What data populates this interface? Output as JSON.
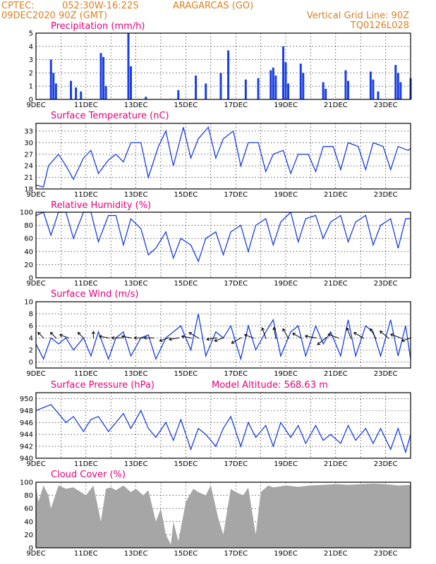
{
  "header": {
    "source": "CPTEC:",
    "location_coords": "052:30W-16:22S",
    "location_name": "ARAGARCAS (GO)",
    "run_date": "09DEC2020 90Z (GMT)",
    "grid_note": "Vertical Grid Line: 90Z",
    "code": "TQ0126L028"
  },
  "colors": {
    "header": "#e08020",
    "panel_title": "#e8007a",
    "series": "#1a3fe0",
    "cloud": "#a6a6a6"
  },
  "chart_data": [
    {
      "id": "precip",
      "type": "bar",
      "title": "Precipitation (mm/h)",
      "ylim": [
        0,
        5
      ],
      "yticks": [
        0,
        1,
        2,
        3,
        4,
        5
      ],
      "x_labels": [
        "9DEC",
        "11DEC",
        "13DEC",
        "15DEC",
        "17DEC",
        "19DEC",
        "21DEC",
        "23DEC"
      ],
      "x_range_days": [
        9,
        24
      ],
      "x": [
        9.6,
        9.7,
        9.8,
        10.4,
        10.6,
        10.8,
        11.6,
        11.7,
        11.8,
        12.7,
        12.8,
        13.4,
        14.7,
        15.4,
        15.8,
        16.4,
        16.7,
        17.4,
        17.9,
        18.4,
        18.5,
        18.6,
        18.9,
        19.0,
        19.1,
        19.6,
        19.7,
        20.5,
        20.6,
        21.4,
        21.5,
        22.4,
        22.5,
        22.7,
        23.4,
        23.5,
        23.6,
        24.0
      ],
      "values": [
        3.0,
        2.0,
        1.2,
        1.4,
        0.9,
        0.6,
        3.5,
        3.2,
        1.0,
        5.0,
        2.5,
        0.2,
        0.7,
        1.8,
        1.2,
        2.0,
        3.7,
        1.5,
        1.6,
        2.2,
        2.4,
        1.8,
        4.0,
        2.8,
        1.2,
        2.7,
        2.0,
        1.3,
        0.8,
        2.2,
        1.4,
        2.1,
        1.5,
        0.6,
        2.6,
        2.0,
        1.3,
        1.6
      ]
    },
    {
      "id": "temp",
      "type": "line",
      "title": "Surface Temperature (nC)",
      "ylim": [
        18,
        35
      ],
      "yticks": [
        18,
        21,
        24,
        27,
        30,
        33
      ],
      "x_labels": [
        "9DEC",
        "11DEC",
        "13DEC",
        "15DEC",
        "17DEC",
        "19DEC",
        "21DEC",
        "23DEC"
      ],
      "x_range_days": [
        9,
        24
      ],
      "x": [
        9.0,
        9.3,
        9.5,
        9.9,
        10.2,
        10.5,
        10.9,
        11.2,
        11.5,
        11.9,
        12.2,
        12.5,
        12.8,
        13.2,
        13.5,
        13.9,
        14.2,
        14.5,
        14.9,
        15.2,
        15.5,
        15.9,
        16.2,
        16.5,
        16.9,
        17.2,
        17.5,
        17.9,
        18.2,
        18.5,
        18.9,
        19.2,
        19.5,
        19.9,
        20.2,
        20.5,
        20.9,
        21.2,
        21.5,
        21.9,
        22.2,
        22.5,
        22.9,
        23.2,
        23.5,
        23.9,
        24.0
      ],
      "values": [
        19,
        18.5,
        24,
        27,
        24,
        20.5,
        26,
        28,
        22,
        25.5,
        27,
        25,
        30,
        30,
        21,
        29,
        33,
        24,
        34,
        26,
        31,
        34,
        26,
        31,
        33,
        24,
        30,
        30,
        22.5,
        27,
        28,
        22,
        27,
        27,
        22.5,
        29,
        29,
        23,
        30,
        29,
        23,
        30,
        29,
        23,
        29,
        28,
        28.5
      ]
    },
    {
      "id": "rh",
      "type": "line",
      "title": "Relative Humidity (%)",
      "ylim": [
        0,
        100
      ],
      "yticks": [
        0,
        20,
        40,
        60,
        80,
        100
      ],
      "x_labels": [
        "9DEC",
        "11DEC",
        "13DEC",
        "15DEC",
        "17DEC",
        "19DEC",
        "21DEC",
        "23DEC"
      ],
      "x_range_days": [
        9,
        24
      ],
      "x": [
        9.0,
        9.3,
        9.6,
        9.9,
        10.2,
        10.5,
        10.9,
        11.2,
        11.5,
        11.9,
        12.2,
        12.5,
        12.8,
        13.2,
        13.5,
        13.8,
        14.2,
        14.5,
        14.8,
        15.2,
        15.5,
        15.8,
        16.2,
        16.5,
        16.8,
        17.2,
        17.5,
        17.8,
        18.2,
        18.5,
        18.8,
        19.2,
        19.5,
        19.8,
        20.2,
        20.5,
        20.8,
        21.2,
        21.5,
        21.8,
        22.2,
        22.5,
        22.8,
        23.2,
        23.5,
        23.8,
        24.0
      ],
      "values": [
        95,
        100,
        65,
        100,
        100,
        60,
        100,
        100,
        55,
        95,
        95,
        50,
        90,
        75,
        35,
        45,
        70,
        30,
        60,
        50,
        25,
        60,
        70,
        35,
        70,
        80,
        40,
        80,
        90,
        50,
        85,
        100,
        55,
        90,
        95,
        60,
        85,
        95,
        55,
        85,
        95,
        50,
        80,
        90,
        45,
        90,
        90
      ]
    },
    {
      "id": "wind",
      "type": "line",
      "title": "Surface Wind (m/s)",
      "ylim": [
        -1,
        10
      ],
      "yticks": [
        0,
        2,
        4,
        6,
        8,
        10
      ],
      "x_labels": [
        "9DEC",
        "11DEC",
        "13DEC",
        "15DEC",
        "17DEC",
        "19DEC",
        "21DEC",
        "23DEC"
      ],
      "x_range_days": [
        9,
        24
      ],
      "x": [
        9.0,
        9.3,
        9.6,
        9.9,
        10.2,
        10.5,
        10.9,
        11.2,
        11.5,
        11.9,
        12.2,
        12.5,
        12.8,
        13.2,
        13.5,
        13.8,
        14.2,
        14.5,
        14.8,
        15.2,
        15.5,
        15.8,
        16.2,
        16.5,
        16.8,
        17.2,
        17.5,
        17.8,
        18.2,
        18.5,
        18.8,
        19.2,
        19.5,
        19.8,
        20.2,
        20.5,
        20.8,
        21.2,
        21.5,
        21.8,
        22.2,
        22.5,
        22.8,
        23.2,
        23.5,
        23.8,
        24.0
      ],
      "values": [
        3,
        0.5,
        4,
        3,
        4,
        2,
        4,
        1,
        5,
        0.5,
        4,
        5,
        1,
        4,
        4.5,
        0.5,
        4,
        5,
        6,
        2,
        8,
        1,
        5,
        4,
        6,
        0.5,
        6,
        2,
        5,
        7,
        1,
        5,
        6,
        1,
        6,
        3,
        5,
        1,
        7,
        1,
        6,
        5,
        1,
        7,
        1,
        6,
        0.5
      ],
      "arrow_x": [
        9.3,
        9.8,
        10.3,
        10.9,
        11.3,
        11.9,
        12.4,
        12.8,
        13.3,
        13.7,
        14.3,
        14.7,
        15.2,
        15.5,
        16.2,
        16.5,
        17.2,
        17.7,
        18.2,
        18.6,
        19.1,
        19.6,
        20.2,
        20.6,
        21.1,
        21.6,
        22.1,
        22.6,
        23.1,
        23.6,
        24.0
      ],
      "arrow_dir_deg": [
        135,
        135,
        160,
        135,
        90,
        170,
        180,
        170,
        180,
        180,
        200,
        190,
        170,
        150,
        190,
        200,
        210,
        160,
        110,
        100,
        120,
        150,
        170,
        220,
        160,
        110,
        150,
        120,
        140,
        160,
        200
      ],
      "arrow_speed": [
        2,
        2,
        3,
        2,
        1,
        3,
        3,
        3,
        3,
        3,
        3,
        3,
        3,
        4,
        3,
        3,
        4,
        3,
        4,
        4,
        4,
        3,
        4,
        4,
        4,
        4,
        4,
        4,
        4,
        4,
        3
      ]
    },
    {
      "id": "press",
      "type": "line",
      "title": "Surface Pressure (hPa)",
      "subtitle": "Model Altitude: 568.63 m",
      "ylim": [
        940,
        951
      ],
      "yticks": [
        940,
        942,
        944,
        946,
        948,
        950
      ],
      "x_labels": [
        "9DEC",
        "11DEC",
        "13DEC",
        "15DEC",
        "17DEC",
        "19DEC",
        "21DEC",
        "23DEC"
      ],
      "x_range_days": [
        9,
        24
      ],
      "x": [
        9.0,
        9.3,
        9.6,
        9.9,
        10.2,
        10.5,
        10.9,
        11.2,
        11.5,
        11.9,
        12.2,
        12.5,
        12.8,
        13.2,
        13.5,
        13.8,
        14.2,
        14.5,
        14.8,
        15.2,
        15.5,
        15.8,
        16.2,
        16.5,
        16.8,
        17.2,
        17.5,
        17.8,
        18.2,
        18.5,
        18.8,
        19.2,
        19.5,
        19.8,
        20.2,
        20.5,
        20.8,
        21.2,
        21.5,
        21.8,
        22.2,
        22.5,
        22.8,
        23.2,
        23.5,
        23.8,
        24.0
      ],
      "values": [
        948,
        948.5,
        949,
        947.5,
        946,
        947,
        944.5,
        946.5,
        947,
        944.5,
        946,
        947.5,
        945,
        948,
        945,
        943.5,
        946,
        943,
        946.5,
        941.5,
        945,
        944,
        942,
        945,
        947,
        942,
        946,
        943.5,
        945.5,
        942,
        946,
        943.5,
        945.5,
        942.5,
        945.5,
        943,
        944,
        942.5,
        945.5,
        943,
        945,
        942.5,
        945,
        941.5,
        945,
        941,
        944
      ]
    },
    {
      "id": "cloud",
      "type": "area",
      "title": "Cloud Cover (%)",
      "ylim": [
        0,
        100
      ],
      "yticks": [
        0,
        20,
        40,
        60,
        80,
        100
      ],
      "x_labels": [
        "9DEC",
        "11DEC",
        "13DEC",
        "15DEC",
        "17DEC",
        "19DEC",
        "21DEC",
        "23DEC"
      ],
      "x_range_days": [
        9,
        24
      ],
      "x": [
        9.0,
        9.1,
        9.3,
        9.5,
        9.6,
        9.9,
        10.2,
        10.5,
        10.8,
        11.0,
        11.3,
        11.6,
        11.8,
        12.0,
        12.2,
        12.5,
        12.8,
        13.0,
        13.3,
        13.5,
        13.8,
        14.0,
        14.2,
        14.4,
        14.5,
        14.7,
        15.0,
        15.3,
        15.5,
        15.8,
        16.0,
        16.3,
        16.5,
        16.8,
        17.0,
        17.3,
        17.5,
        17.8,
        18.0,
        18.3,
        18.5,
        19.0,
        19.5,
        20.0,
        20.5,
        21.0,
        21.5,
        22.0,
        22.5,
        23.0,
        23.5,
        24.0
      ],
      "values": [
        95,
        70,
        95,
        80,
        60,
        95,
        90,
        92,
        85,
        80,
        95,
        40,
        90,
        92,
        88,
        95,
        85,
        90,
        80,
        88,
        40,
        60,
        20,
        5,
        40,
        10,
        70,
        90,
        85,
        80,
        95,
        45,
        20,
        90,
        85,
        80,
        92,
        20,
        85,
        95,
        92,
        95,
        93,
        95,
        96,
        97,
        96,
        97,
        98,
        97,
        95,
        96
      ]
    }
  ]
}
